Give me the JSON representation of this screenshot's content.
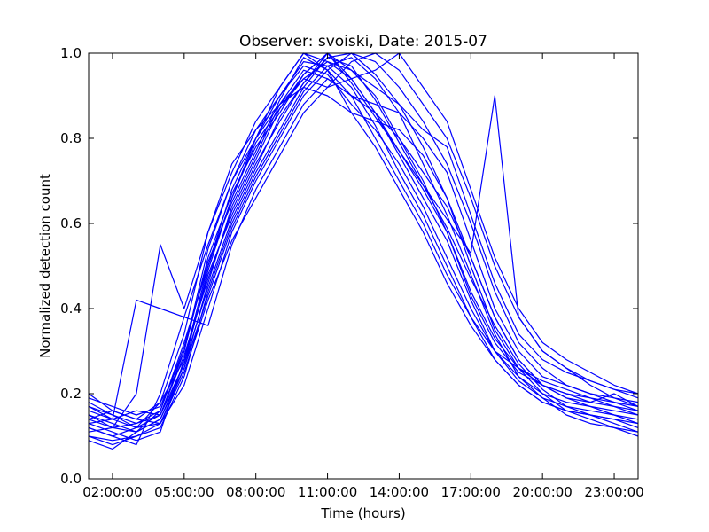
{
  "chart_data": {
    "type": "line",
    "title": "Observer: svoiski, Date: 2015-07",
    "xlabel": "Time (hours)",
    "ylabel": "Normalized detection count",
    "xlim": [
      1.0,
      24.0
    ],
    "ylim": [
      0.0,
      1.0
    ],
    "xticks": [
      2,
      5,
      8,
      11,
      14,
      17,
      20,
      23
    ],
    "xtick_labels": [
      "02:00:00",
      "05:00:00",
      "08:00:00",
      "11:00:00",
      "14:00:00",
      "17:00:00",
      "20:00:00",
      "23:00:00"
    ],
    "yticks": [
      0.0,
      0.2,
      0.4,
      0.6,
      0.8,
      1.0
    ],
    "ytick_labels": [
      "0.0",
      "0.2",
      "0.4",
      "0.6",
      "0.8",
      "1.0"
    ],
    "grid": false,
    "legend": "none",
    "line_color": "#0000ff",
    "x": [
      1.0,
      2.0,
      3.0,
      4.0,
      5.0,
      6.0,
      7.0,
      8.0,
      9.0,
      10.0,
      11.0,
      12.0,
      13.0,
      14.0,
      15.0,
      16.0,
      17.0,
      18.0,
      19.0,
      20.0,
      21.0,
      22.0,
      23.0,
      24.0
    ],
    "series": [
      {
        "values": [
          0.17,
          0.14,
          0.12,
          0.15,
          0.3,
          0.52,
          0.67,
          0.78,
          0.86,
          0.95,
          1.0,
          0.94,
          0.86,
          0.77,
          0.68,
          0.58,
          0.43,
          0.32,
          0.25,
          0.22,
          0.2,
          0.18,
          0.17,
          0.16
        ]
      },
      {
        "values": [
          0.12,
          0.1,
          0.08,
          0.2,
          0.38,
          0.55,
          0.7,
          0.82,
          0.9,
          0.98,
          0.97,
          0.92,
          0.83,
          0.72,
          0.62,
          0.5,
          0.38,
          0.28,
          0.22,
          0.18,
          0.16,
          0.15,
          0.14,
          0.13
        ]
      },
      {
        "values": [
          0.2,
          0.16,
          0.14,
          0.18,
          0.28,
          0.48,
          0.62,
          0.74,
          0.84,
          0.93,
          1.0,
          0.96,
          0.9,
          0.8,
          0.72,
          0.64,
          0.52,
          0.38,
          0.28,
          0.22,
          0.19,
          0.18,
          0.2,
          0.17
        ]
      },
      {
        "values": [
          0.1,
          0.08,
          0.1,
          0.12,
          0.24,
          0.44,
          0.6,
          0.72,
          0.82,
          0.92,
          0.99,
          1.0,
          0.95,
          0.88,
          0.78,
          0.66,
          0.5,
          0.35,
          0.26,
          0.2,
          0.16,
          0.14,
          0.12,
          0.1
        ]
      },
      {
        "values": [
          0.15,
          0.13,
          0.11,
          0.14,
          0.26,
          0.46,
          0.64,
          0.76,
          0.88,
          0.96,
          0.94,
          0.9,
          0.88,
          0.86,
          0.8,
          0.72,
          0.56,
          0.4,
          0.3,
          0.24,
          0.22,
          0.2,
          0.19,
          0.18
        ]
      },
      {
        "values": [
          0.14,
          0.12,
          0.13,
          0.16,
          0.32,
          0.5,
          0.66,
          0.8,
          0.92,
          1.0,
          0.98,
          0.94,
          0.86,
          0.76,
          0.66,
          0.56,
          0.42,
          0.3,
          0.24,
          0.2,
          0.18,
          0.17,
          0.16,
          0.15
        ]
      },
      {
        "values": [
          0.18,
          0.15,
          0.12,
          0.13,
          0.22,
          0.4,
          0.58,
          0.7,
          0.8,
          0.9,
          0.96,
          1.0,
          0.98,
          0.92,
          0.84,
          0.74,
          0.6,
          0.44,
          0.32,
          0.26,
          0.22,
          0.2,
          0.18,
          0.16
        ]
      },
      {
        "values": [
          0.13,
          0.11,
          0.09,
          0.11,
          0.28,
          0.5,
          0.68,
          0.8,
          0.9,
          0.97,
          0.95,
          0.88,
          0.82,
          0.74,
          0.64,
          0.52,
          0.4,
          0.3,
          0.23,
          0.19,
          0.17,
          0.16,
          0.15,
          0.14
        ]
      },
      {
        "values": [
          0.16,
          0.14,
          0.42,
          0.4,
          0.38,
          0.36,
          0.55,
          0.68,
          0.78,
          0.88,
          0.94,
          0.9,
          0.8,
          0.7,
          0.6,
          0.48,
          0.38,
          0.3,
          0.26,
          0.23,
          0.21,
          0.19,
          0.17,
          0.15
        ]
      },
      {
        "values": [
          0.11,
          0.12,
          0.2,
          0.55,
          0.4,
          0.58,
          0.72,
          0.84,
          0.92,
          1.0,
          0.96,
          0.86,
          0.78,
          0.68,
          0.58,
          0.46,
          0.36,
          0.28,
          0.22,
          0.18,
          0.16,
          0.15,
          0.14,
          0.12
        ]
      },
      {
        "values": [
          0.19,
          0.17,
          0.15,
          0.17,
          0.3,
          0.54,
          0.7,
          0.8,
          0.88,
          0.94,
          0.98,
          0.96,
          0.92,
          0.88,
          0.82,
          0.78,
          0.62,
          0.46,
          0.34,
          0.28,
          0.25,
          0.23,
          0.21,
          0.2
        ]
      },
      {
        "values": [
          0.09,
          0.07,
          0.11,
          0.14,
          0.27,
          0.45,
          0.61,
          0.73,
          0.85,
          0.93,
          0.99,
          0.97,
          0.89,
          0.79,
          0.69,
          0.59,
          0.47,
          0.36,
          0.27,
          0.21,
          0.17,
          0.15,
          0.13,
          0.11
        ]
      },
      {
        "values": [
          0.14,
          0.16,
          0.14,
          0.13,
          0.25,
          0.42,
          0.56,
          0.66,
          0.76,
          0.86,
          0.92,
          0.98,
          1.0,
          0.96,
          0.88,
          0.8,
          0.66,
          0.5,
          0.38,
          0.3,
          0.26,
          0.23,
          0.21,
          0.19
        ]
      },
      {
        "values": [
          0.12,
          0.1,
          0.12,
          0.18,
          0.34,
          0.58,
          0.74,
          0.82,
          0.88,
          0.92,
          0.9,
          0.86,
          0.84,
          0.82,
          0.76,
          0.66,
          0.52,
          0.38,
          0.28,
          0.22,
          0.19,
          0.17,
          0.15,
          0.13
        ]
      },
      {
        "values": [
          0.17,
          0.15,
          0.13,
          0.15,
          0.29,
          0.47,
          0.63,
          0.75,
          0.87,
          0.95,
          1.0,
          0.93,
          0.85,
          0.77,
          0.69,
          0.61,
          0.53,
          0.9,
          0.38,
          0.3,
          0.26,
          0.22,
          0.19,
          0.17
        ]
      },
      {
        "values": [
          0.1,
          0.09,
          0.1,
          0.13,
          0.26,
          0.43,
          0.59,
          0.71,
          0.81,
          0.91,
          0.97,
          0.99,
          0.94,
          0.86,
          0.74,
          0.62,
          0.48,
          0.34,
          0.24,
          0.19,
          0.15,
          0.13,
          0.12,
          0.11
        ]
      },
      {
        "values": [
          0.15,
          0.12,
          0.11,
          0.16,
          0.31,
          0.51,
          0.65,
          0.77,
          0.89,
          0.99,
          0.96,
          0.9,
          0.86,
          0.8,
          0.7,
          0.58,
          0.44,
          0.33,
          0.26,
          0.22,
          0.2,
          0.19,
          0.18,
          0.17
        ]
      },
      {
        "values": [
          0.13,
          0.14,
          0.16,
          0.15,
          0.27,
          0.49,
          0.66,
          0.79,
          0.87,
          0.94,
          0.92,
          0.94,
          0.96,
          1.0,
          0.92,
          0.84,
          0.68,
          0.52,
          0.4,
          0.32,
          0.28,
          0.25,
          0.22,
          0.2
        ]
      }
    ]
  }
}
